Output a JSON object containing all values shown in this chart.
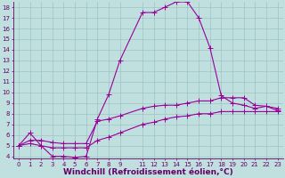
{
  "xlabel": "Windchill (Refroidissement éolien,°C)",
  "xlim": [
    -0.5,
    23.5
  ],
  "ylim": [
    3.8,
    18.5
  ],
  "xticks": [
    0,
    1,
    2,
    3,
    4,
    5,
    6,
    7,
    8,
    9,
    11,
    12,
    13,
    14,
    15,
    16,
    17,
    18,
    19,
    20,
    21,
    22,
    23
  ],
  "yticks": [
    4,
    5,
    6,
    7,
    8,
    9,
    10,
    11,
    12,
    13,
    14,
    15,
    16,
    17,
    18
  ],
  "background_color": "#c0e0e0",
  "line_color": "#990099",
  "grid_color": "#99bbbb",
  "line1_x": [
    0,
    1,
    2,
    3,
    4,
    5,
    6,
    7,
    8,
    9,
    11,
    12,
    13,
    14,
    15,
    16,
    17,
    18,
    19,
    20,
    21,
    22,
    23
  ],
  "line1_y": [
    5.0,
    6.2,
    5.0,
    4.0,
    4.0,
    3.9,
    4.0,
    7.5,
    9.8,
    13.0,
    17.5,
    17.5,
    18.0,
    18.5,
    18.5,
    17.0,
    14.2,
    9.7,
    9.0,
    8.8,
    8.5,
    8.7,
    8.3
  ],
  "line2_x": [
    0,
    1,
    2,
    3,
    4,
    5,
    6,
    7,
    8,
    9,
    11,
    12,
    13,
    14,
    15,
    16,
    17,
    18,
    19,
    20,
    21,
    22,
    23
  ],
  "line2_y": [
    5.0,
    5.5,
    5.5,
    5.3,
    5.2,
    5.2,
    5.2,
    7.3,
    7.5,
    7.8,
    8.5,
    8.7,
    8.8,
    8.8,
    9.0,
    9.2,
    9.2,
    9.5,
    9.5,
    9.5,
    8.8,
    8.7,
    8.5
  ],
  "line3_x": [
    0,
    1,
    2,
    3,
    4,
    5,
    6,
    7,
    8,
    9,
    11,
    12,
    13,
    14,
    15,
    16,
    17,
    18,
    19,
    20,
    21,
    22,
    23
  ],
  "line3_y": [
    5.0,
    5.2,
    5.0,
    4.8,
    4.8,
    4.8,
    4.8,
    5.5,
    5.8,
    6.2,
    7.0,
    7.2,
    7.5,
    7.7,
    7.8,
    8.0,
    8.0,
    8.2,
    8.2,
    8.2,
    8.2,
    8.2,
    8.2
  ],
  "marker_size": 2.5,
  "linewidth": 0.8,
  "tick_fontsize": 5.0,
  "xlabel_fontsize": 6.5,
  "axis_color": "#660066",
  "spine_color": "#660066"
}
